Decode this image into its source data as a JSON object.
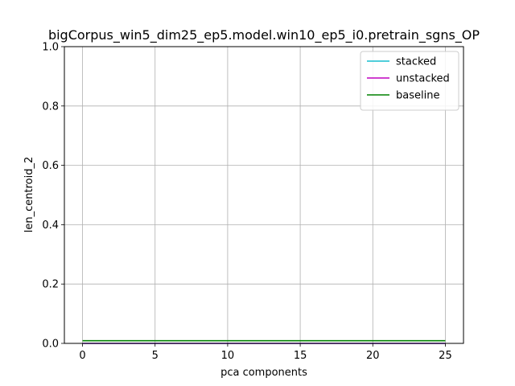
{
  "chart_data": {
    "type": "line",
    "title": "bigCorpus_win5_dim25_ep5.model.win10_ep5_i0.pretrain_sgns_OP",
    "xlabel": "pca components",
    "ylabel": "len_centroid_2",
    "xlim": [
      -1.25,
      26.25
    ],
    "ylim": [
      0,
      1.0
    ],
    "xticks": [
      0,
      5,
      10,
      15,
      20,
      25
    ],
    "xtick_labels": [
      "0",
      "5",
      "10",
      "15",
      "20",
      "25"
    ],
    "yticks": [
      0.0,
      0.2,
      0.4,
      0.6,
      0.8,
      1.0
    ],
    "ytick_labels": [
      "0.0",
      "0.2",
      "0.4",
      "0.6",
      "0.8",
      "1.0"
    ],
    "grid": true,
    "legend_position": "top-right",
    "series": [
      {
        "name": "stacked",
        "color": "#17becf",
        "x": [
          0,
          25
        ],
        "y": [
          0.0,
          0.0
        ]
      },
      {
        "name": "unstacked",
        "color": "#bf00bf",
        "x": [
          0,
          25
        ],
        "y": [
          0.0,
          0.0
        ]
      },
      {
        "name": "baseline",
        "color": "#008000",
        "x": [
          0,
          25
        ],
        "y": [
          0.009,
          0.009
        ]
      }
    ]
  }
}
